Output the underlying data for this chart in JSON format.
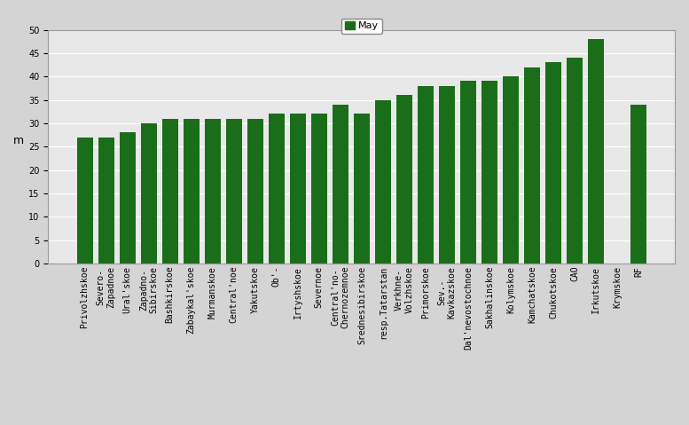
{
  "categories": [
    "Privolzhskoe",
    "Severo-\nZapadnoe",
    "Ural'skoe",
    "Zapadno-\nSibirskoe",
    "Bashkirskoe",
    "Zabaykal'skoe",
    "Murmanskoe",
    "Central'noe",
    "Yakutskoe",
    "Ob'-",
    "Irtyshskoe",
    "Severnoe",
    "Central'no-\nChernozemnoe",
    "Srednesibirskoe",
    "resp.Tatarstan",
    "Verkhne-\nVolzhskoe",
    "Primorskoe",
    "Sev.-\nKavkazskoe",
    "Dal'nevostochnoe",
    "Sakhalinskoe",
    "Kolymskoe",
    "Kamchatskoe",
    "Chukotskoe",
    "CAO",
    "Irkutskoe",
    "Krymskoe",
    "RF"
  ],
  "values": [
    27,
    27,
    28,
    30,
    31,
    31,
    31,
    31,
    31,
    32,
    32,
    32,
    34,
    32,
    35,
    36,
    38,
    38,
    39,
    39,
    40,
    42,
    43,
    44,
    48,
    0,
    34
  ],
  "bar_color": "#1a6e1a",
  "ylabel": "m",
  "ylim": [
    0,
    50
  ],
  "yticks": [
    0,
    5,
    10,
    15,
    20,
    25,
    30,
    35,
    40,
    45,
    50
  ],
  "legend_label": "May",
  "plot_bg_color": "#e8e8e8",
  "fig_bg_color": "#d4d4d4",
  "tick_fontsize": 7,
  "ylabel_fontsize": 9,
  "bar_width": 0.75
}
